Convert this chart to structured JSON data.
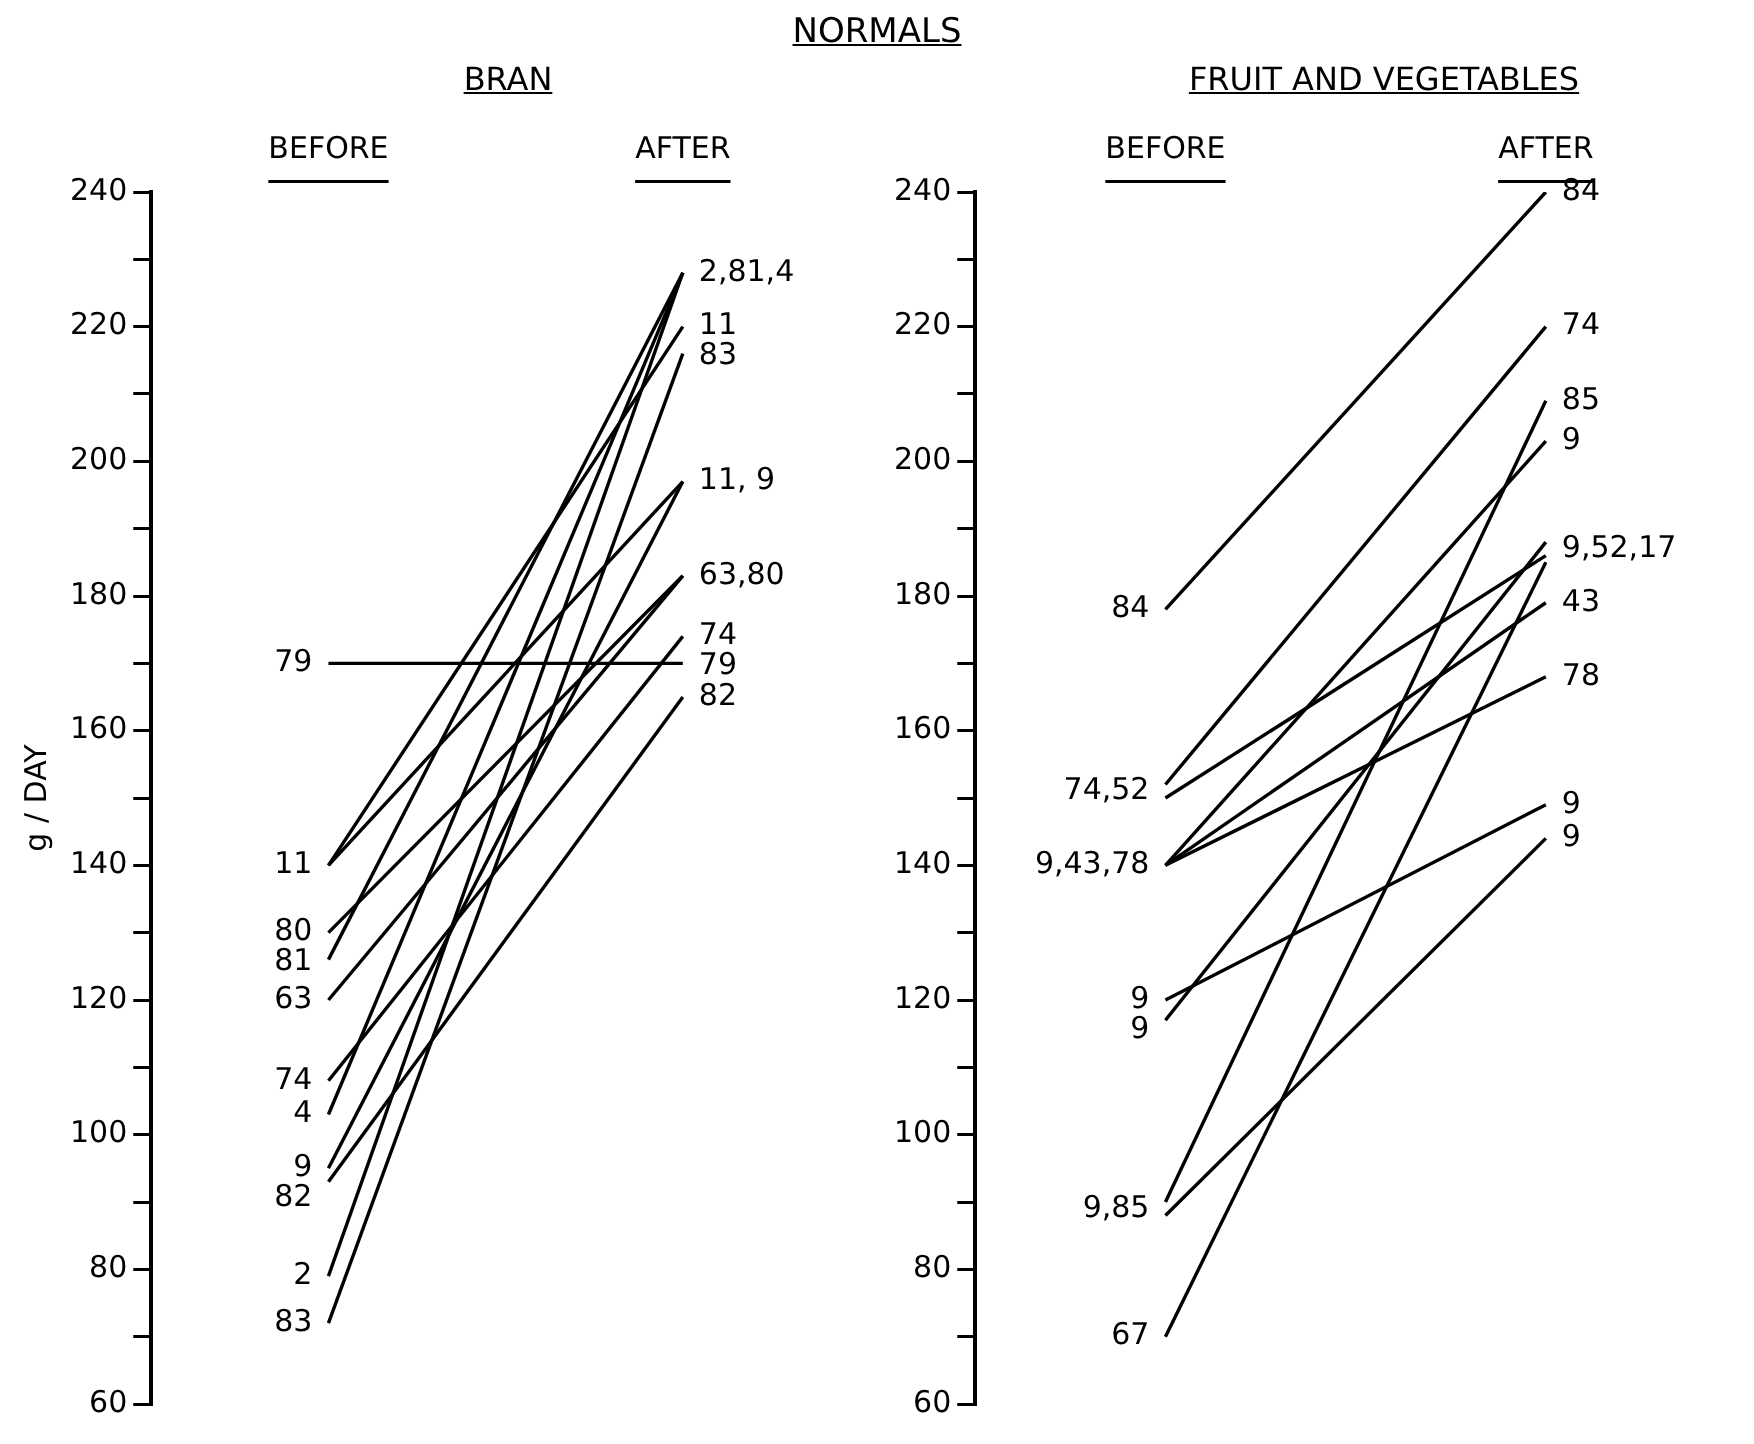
{
  "chart_data": [
    {
      "type": "line",
      "title": "BRAN",
      "ylabel": "g / DAY",
      "categories": [
        "BEFORE",
        "AFTER"
      ],
      "ylim": [
        60,
        240
      ],
      "yticks": [
        60,
        {
          "value": 70,
          "label": null
        },
        80,
        {
          "value": 90,
          "label": null
        },
        100,
        {
          "value": 110,
          "label": null
        },
        120,
        {
          "value": 130,
          "label": null
        },
        140,
        {
          "value": 150,
          "label": null
        },
        160,
        {
          "value": 170,
          "label": null
        },
        180,
        {
          "value": 190,
          "label": null
        },
        200,
        {
          "value": 210,
          "label": null
        },
        220,
        {
          "value": 230,
          "label": null
        },
        240
      ],
      "grid": false,
      "legend": false,
      "marker": "none",
      "series": [
        {
          "color": "#000000",
          "values": [
            170,
            170
          ]
        },
        {
          "color": "#000000",
          "values": [
            140,
            220
          ]
        },
        {
          "color": "#000000",
          "values": [
            140,
            197
          ]
        },
        {
          "color": "#000000",
          "values": [
            130,
            183
          ]
        },
        {
          "color": "#000000",
          "values": [
            126,
            228
          ]
        },
        {
          "color": "#000000",
          "values": [
            120,
            183
          ]
        },
        {
          "color": "#000000",
          "values": [
            108,
            174
          ]
        },
        {
          "color": "#000000",
          "values": [
            103,
            228
          ]
        },
        {
          "color": "#000000",
          "values": [
            95,
            197
          ]
        },
        {
          "color": "#000000",
          "values": [
            93,
            165
          ]
        },
        {
          "color": "#000000",
          "values": [
            79,
            228
          ]
        },
        {
          "color": "#000000",
          "values": [
            72,
            216
          ]
        }
      ],
      "annotations": [
        "NORMALS",
        {
          "text": "79",
          "x": "BEFORE",
          "y": 170
        },
        {
          "text": "11",
          "x": "BEFORE",
          "y": 140
        },
        {
          "text": "80",
          "x": "BEFORE",
          "y": 130
        },
        {
          "text": "81",
          "x": "BEFORE",
          "y": 126
        },
        {
          "text": "63",
          "x": "BEFORE",
          "y": 120
        },
        {
          "text": "74",
          "x": "BEFORE",
          "y": 108
        },
        {
          "text": "4",
          "x": "BEFORE",
          "y": 103
        },
        {
          "text": "9",
          "x": "BEFORE",
          "y": 95
        },
        {
          "text": "82",
          "x": "BEFORE",
          "y": 93
        },
        {
          "text": "2",
          "x": "BEFORE",
          "y": 79
        },
        {
          "text": "83",
          "x": "BEFORE",
          "y": 72
        },
        {
          "text": "2,81,4",
          "x": "AFTER",
          "y": 228
        },
        {
          "text": "11",
          "x": "AFTER",
          "y": 220
        },
        {
          "text": "83",
          "x": "AFTER",
          "y": 216
        },
        {
          "text": "11, 9",
          "x": "AFTER",
          "y": 197
        },
        {
          "text": "63,80",
          "x": "AFTER",
          "y": 183
        },
        {
          "text": "74",
          "x": "AFTER",
          "y": 174
        },
        {
          "text": "79",
          "x": "AFTER",
          "y": 170
        },
        {
          "text": "82",
          "x": "AFTER",
          "y": 165
        }
      ]
    },
    {
      "type": "line",
      "title": "FRUIT AND VEGETABLES",
      "categories": [
        "BEFORE",
        "AFTER"
      ],
      "ylim": [
        60,
        240
      ],
      "yticks": [
        60,
        {
          "value": 70,
          "label": null
        },
        80,
        {
          "value": 90,
          "label": null
        },
        100,
        {
          "value": 110,
          "label": null
        },
        120,
        {
          "value": 130,
          "label": null
        },
        140,
        {
          "value": 150,
          "label": null
        },
        160,
        {
          "value": 170,
          "label": null
        },
        180,
        {
          "value": 190,
          "label": null
        },
        200,
        {
          "value": 210,
          "label": null
        },
        220,
        {
          "value": 230,
          "label": null
        },
        240
      ],
      "grid": false,
      "legend": false,
      "marker": "none",
      "series": [
        {
          "color": "#000000",
          "values": [
            178,
            240
          ]
        },
        {
          "color": "#000000",
          "values": [
            152,
            220
          ]
        },
        {
          "color": "#000000",
          "values": [
            150,
            186
          ]
        },
        {
          "color": "#000000",
          "values": [
            140,
            203
          ]
        },
        {
          "color": "#000000",
          "values": [
            140,
            179
          ]
        },
        {
          "color": "#000000",
          "values": [
            140,
            168
          ]
        },
        {
          "color": "#000000",
          "values": [
            120,
            149
          ]
        },
        {
          "color": "#000000",
          "values": [
            117,
            188
          ]
        },
        {
          "color": "#000000",
          "values": [
            90,
            209
          ]
        },
        {
          "color": "#000000",
          "values": [
            88,
            144
          ]
        },
        {
          "color": "#000000",
          "values": [
            70,
            185
          ]
        }
      ],
      "annotations": [
        {
          "text": "84",
          "x": "BEFORE",
          "y": 178
        },
        {
          "text": "74,52",
          "x": "BEFORE",
          "y": 151
        },
        {
          "text": "9,43,78",
          "x": "BEFORE",
          "y": 140
        },
        {
          "text": "9",
          "x": "BEFORE",
          "y": 120
        },
        {
          "text": "9",
          "x": "BEFORE",
          "y": 117
        },
        {
          "text": "9,85",
          "x": "BEFORE",
          "y": 89
        },
        {
          "text": "67",
          "x": "BEFORE",
          "y": 70
        },
        {
          "text": "84",
          "x": "AFTER",
          "y": 240
        },
        {
          "text": "74",
          "x": "AFTER",
          "y": 220
        },
        {
          "text": "85",
          "x": "AFTER",
          "y": 209
        },
        {
          "text": "9",
          "x": "AFTER",
          "y": 203
        },
        {
          "text": "9,52,17",
          "x": "AFTER",
          "y": 187
        },
        {
          "text": "43",
          "x": "AFTER",
          "y": 179
        },
        {
          "text": "78",
          "x": "AFTER",
          "y": 168
        },
        {
          "text": "9",
          "x": "AFTER",
          "y": 149
        },
        {
          "text": "9",
          "x": "AFTER",
          "y": 144
        }
      ]
    }
  ]
}
